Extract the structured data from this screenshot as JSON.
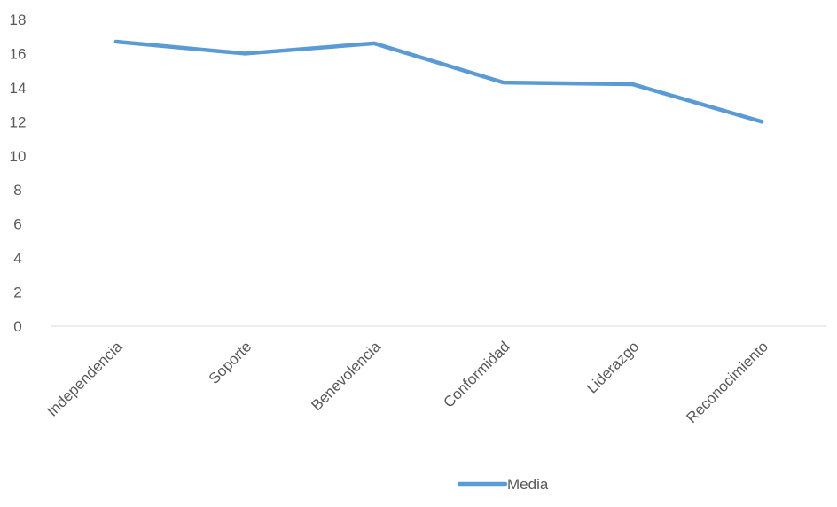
{
  "chart_data": {
    "type": "line",
    "categories": [
      "Independencia",
      "Soporte",
      "Benevolencia",
      "Conformidad",
      "Liderazgo",
      "Reconocimiento"
    ],
    "series": [
      {
        "name": "Media",
        "values": [
          16.7,
          16.0,
          16.6,
          14.3,
          14.2,
          12.0
        ],
        "color": "#5B9BD5"
      }
    ],
    "ylim": [
      0,
      18
    ],
    "yticks": [
      0,
      2,
      4,
      6,
      8,
      10,
      12,
      14,
      16,
      18
    ],
    "title": "",
    "xlabel": "",
    "ylabel": "",
    "grid": false,
    "legend_position": "bottom"
  }
}
